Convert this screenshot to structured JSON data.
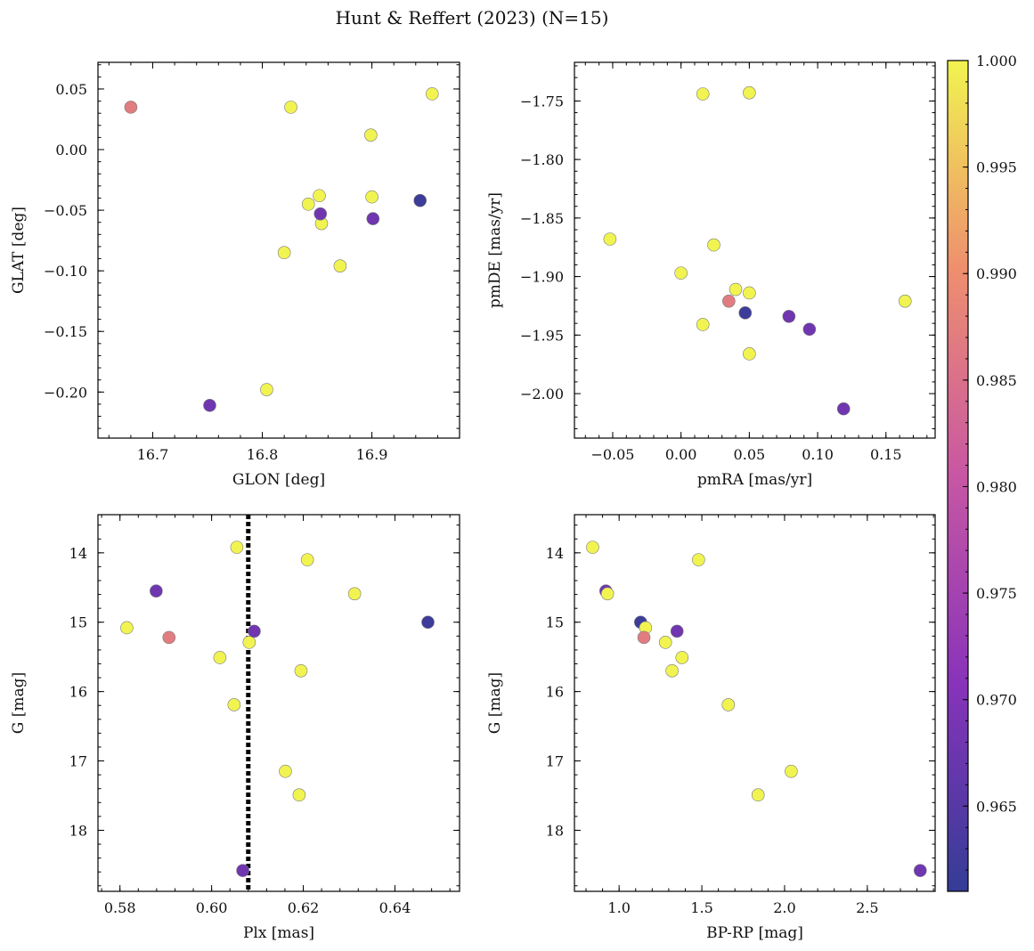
{
  "chart_data": {
    "title": "Hunt & Reffert (2023) (N=15)",
    "type": "scatter",
    "colorbar": {
      "range": [
        0.961,
        1.0
      ],
      "ticks": [
        "0.965",
        "0.970",
        "0.975",
        "0.980",
        "0.985",
        "0.990",
        "0.995",
        "1.000"
      ],
      "tick_values": [
        0.965,
        0.97,
        0.975,
        0.98,
        0.985,
        0.99,
        0.995,
        1.0
      ],
      "colormap": "plasma",
      "location": "right"
    },
    "panels": [
      {
        "xlabel": "GLON [deg]",
        "ylabel": "GLAT [deg]",
        "xlim": [
          16.65,
          16.98
        ],
        "ylim": [
          -0.238,
          0.072
        ],
        "xticks": [
          16.7,
          16.8,
          16.9
        ],
        "xtick_labels": [
          "16.7",
          "16.8",
          "16.9"
        ],
        "yticks": [
          0.05,
          0.0,
          -0.05,
          -0.1,
          -0.15,
          -0.2
        ],
        "ytick_labels": [
          "0.05",
          "0.00",
          "−0.05",
          "−0.10",
          "−0.15",
          "−0.20"
        ],
        "y_inverted": false,
        "points": [
          {
            "x": 16.68,
            "y": 0.035,
            "c": 0.987
          },
          {
            "x": 16.752,
            "y": -0.211,
            "c": 0.968
          },
          {
            "x": 16.804,
            "y": -0.198,
            "c": 1.0
          },
          {
            "x": 16.82,
            "y": -0.085,
            "c": 1.0
          },
          {
            "x": 16.826,
            "y": 0.035,
            "c": 1.0
          },
          {
            "x": 16.842,
            "y": -0.045,
            "c": 1.0
          },
          {
            "x": 16.852,
            "y": -0.038,
            "c": 1.0
          },
          {
            "x": 16.854,
            "y": -0.061,
            "c": 1.0
          },
          {
            "x": 16.853,
            "y": -0.053,
            "c": 0.968
          },
          {
            "x": 16.871,
            "y": -0.096,
            "c": 1.0
          },
          {
            "x": 16.899,
            "y": 0.012,
            "c": 1.0
          },
          {
            "x": 16.9,
            "y": -0.039,
            "c": 1.0
          },
          {
            "x": 16.901,
            "y": -0.057,
            "c": 0.968
          },
          {
            "x": 16.944,
            "y": -0.042,
            "c": 0.962
          },
          {
            "x": 16.955,
            "y": 0.046,
            "c": 1.0
          }
        ]
      },
      {
        "xlabel": "pmRA [mas/yr]",
        "ylabel": "pmDE [mas/yr]",
        "xlim": [
          -0.078,
          0.186
        ],
        "ylim": [
          -2.038,
          -1.717
        ],
        "xticks": [
          -0.05,
          0.0,
          0.05,
          0.1,
          0.15
        ],
        "xtick_labels": [
          "−0.05",
          "0.00",
          "0.05",
          "0.10",
          "0.15"
        ],
        "yticks": [
          -1.75,
          -1.8,
          -1.85,
          -1.9,
          -1.95,
          -2.0
        ],
        "ytick_labels": [
          "−1.75",
          "−1.80",
          "−1.85",
          "−1.90",
          "−1.95",
          "−2.00"
        ],
        "y_inverted": false,
        "points": [
          {
            "x": -0.052,
            "y": -1.868,
            "c": 1.0
          },
          {
            "x": 0.0,
            "y": -1.897,
            "c": 1.0
          },
          {
            "x": 0.016,
            "y": -1.744,
            "c": 1.0
          },
          {
            "x": 0.016,
            "y": -1.941,
            "c": 1.0
          },
          {
            "x": 0.024,
            "y": -1.873,
            "c": 1.0
          },
          {
            "x": 0.035,
            "y": -1.921,
            "c": 0.987
          },
          {
            "x": 0.04,
            "y": -1.911,
            "c": 1.0
          },
          {
            "x": 0.047,
            "y": -1.931,
            "c": 0.962
          },
          {
            "x": 0.05,
            "y": -1.743,
            "c": 1.0
          },
          {
            "x": 0.05,
            "y": -1.914,
            "c": 1.0
          },
          {
            "x": 0.05,
            "y": -1.966,
            "c": 1.0
          },
          {
            "x": 0.079,
            "y": -1.934,
            "c": 0.968
          },
          {
            "x": 0.094,
            "y": -1.945,
            "c": 0.968
          },
          {
            "x": 0.119,
            "y": -2.013,
            "c": 0.968
          },
          {
            "x": 0.164,
            "y": -1.921,
            "c": 1.0
          }
        ]
      },
      {
        "xlabel": "Plx [mas]",
        "ylabel": "G [mag]",
        "xlim": [
          0.5752,
          0.6541
        ],
        "ylim": [
          13.45,
          18.88
        ],
        "xticks": [
          0.58,
          0.6,
          0.62,
          0.64
        ],
        "xtick_labels": [
          "0.58",
          "0.60",
          "0.62",
          "0.64"
        ],
        "yticks": [
          14,
          15,
          16,
          17,
          18
        ],
        "ytick_labels": [
          "14",
          "15",
          "16",
          "17",
          "18"
        ],
        "y_inverted": true,
        "vline": {
          "x": 0.608,
          "style": "dotted",
          "color": "#000000"
        },
        "points": [
          {
            "x": 0.5815,
            "y": 15.08,
            "c": 1.0
          },
          {
            "x": 0.5879,
            "y": 14.55,
            "c": 0.968
          },
          {
            "x": 0.5907,
            "y": 15.22,
            "c": 0.987
          },
          {
            "x": 0.6018,
            "y": 15.51,
            "c": 1.0
          },
          {
            "x": 0.6049,
            "y": 16.19,
            "c": 1.0
          },
          {
            "x": 0.6055,
            "y": 13.92,
            "c": 1.0
          },
          {
            "x": 0.6068,
            "y": 18.58,
            "c": 0.968
          },
          {
            "x": 0.6082,
            "y": 15.29,
            "c": 1.0
          },
          {
            "x": 0.6093,
            "y": 15.13,
            "c": 0.968
          },
          {
            "x": 0.6161,
            "y": 17.15,
            "c": 1.0
          },
          {
            "x": 0.6191,
            "y": 17.49,
            "c": 1.0
          },
          {
            "x": 0.6195,
            "y": 15.7,
            "c": 1.0
          },
          {
            "x": 0.6209,
            "y": 14.1,
            "c": 1.0
          },
          {
            "x": 0.6312,
            "y": 14.59,
            "c": 1.0
          },
          {
            "x": 0.6472,
            "y": 15.0,
            "c": 0.962
          }
        ]
      },
      {
        "xlabel": "BP-RP [mag]",
        "ylabel": "G [mag]",
        "xlim": [
          0.73,
          2.91
        ],
        "ylim": [
          13.45,
          18.88
        ],
        "xticks": [
          1.0,
          1.5,
          2.0,
          2.5
        ],
        "xtick_labels": [
          "1.0",
          "1.5",
          "2.0",
          "2.5"
        ],
        "yticks": [
          14,
          15,
          16,
          17,
          18
        ],
        "ytick_labels": [
          "14",
          "15",
          "16",
          "17",
          "18"
        ],
        "y_inverted": true,
        "points": [
          {
            "x": 0.84,
            "y": 13.92,
            "c": 1.0
          },
          {
            "x": 0.92,
            "y": 14.55,
            "c": 0.968
          },
          {
            "x": 0.93,
            "y": 14.59,
            "c": 1.0
          },
          {
            "x": 1.13,
            "y": 15.0,
            "c": 0.962
          },
          {
            "x": 1.16,
            "y": 15.08,
            "c": 1.0
          },
          {
            "x": 1.15,
            "y": 15.22,
            "c": 0.987
          },
          {
            "x": 1.28,
            "y": 15.29,
            "c": 1.0
          },
          {
            "x": 1.32,
            "y": 15.7,
            "c": 1.0
          },
          {
            "x": 1.35,
            "y": 15.13,
            "c": 0.968
          },
          {
            "x": 1.38,
            "y": 15.51,
            "c": 1.0
          },
          {
            "x": 1.48,
            "y": 14.1,
            "c": 1.0
          },
          {
            "x": 1.66,
            "y": 16.19,
            "c": 1.0
          },
          {
            "x": 1.84,
            "y": 17.49,
            "c": 1.0
          },
          {
            "x": 2.04,
            "y": 17.15,
            "c": 1.0
          },
          {
            "x": 2.82,
            "y": 18.58,
            "c": 0.968
          }
        ]
      }
    ]
  }
}
